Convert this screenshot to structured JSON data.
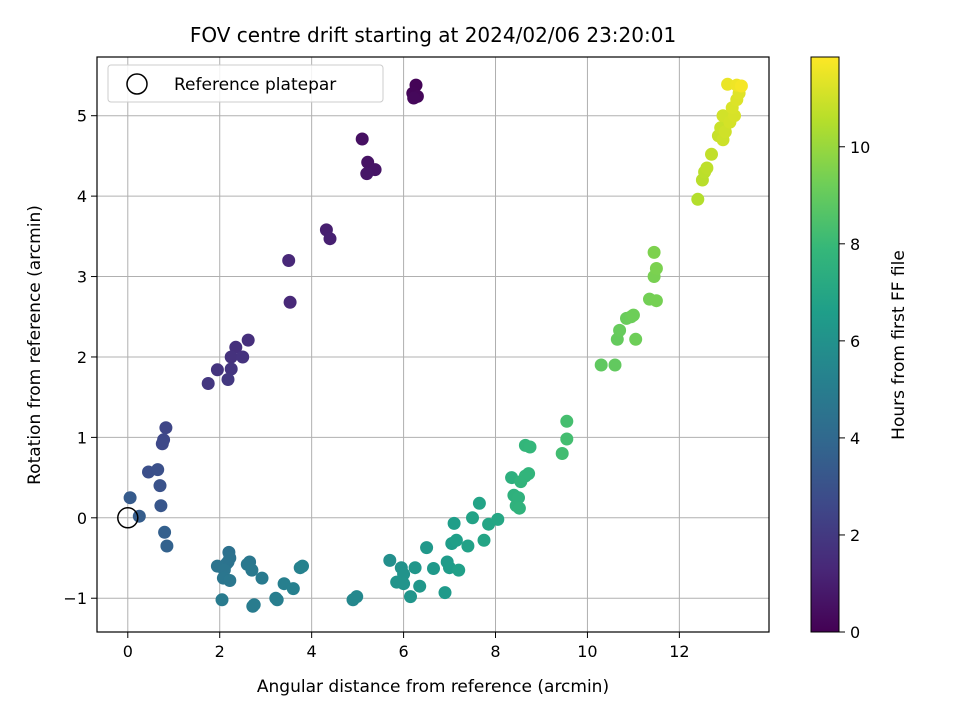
{
  "chart_data": {
    "type": "scatter",
    "title": "FOV centre drift starting at 2024/02/06 23:20:01",
    "xlabel": "Angular distance from reference (arcmin)",
    "ylabel": "Rotation from reference (arcmin)",
    "xlim": [
      -0.67,
      13.95
    ],
    "ylim": [
      -1.42,
      5.73
    ],
    "xticks": [
      0,
      2,
      4,
      6,
      8,
      10,
      12
    ],
    "yticks": [
      -1,
      0,
      1,
      2,
      3,
      4,
      5
    ],
    "grid": true,
    "legend": {
      "position": "top-left",
      "entries": [
        "Reference platepar"
      ]
    },
    "reference_point": {
      "x": 0,
      "y": 0
    },
    "colorbar": {
      "label": "Hours from first FF file",
      "colormap": "viridis",
      "range": [
        0,
        11.85
      ],
      "ticks": [
        0,
        2,
        4,
        6,
        8,
        10
      ]
    },
    "colormap_stops": [
      "#440154",
      "#482878",
      "#3e4989",
      "#31688e",
      "#26828e",
      "#1f9e89",
      "#35b779",
      "#6ece58",
      "#b5de2b",
      "#fde725"
    ],
    "points": [
      [
        6.27,
        5.38,
        0.1
      ],
      [
        6.2,
        5.28,
        0.15
      ],
      [
        6.3,
        5.24,
        0.2
      ],
      [
        6.22,
        5.22,
        0.25
      ],
      [
        5.1,
        4.71,
        0.5
      ],
      [
        5.22,
        4.42,
        0.6
      ],
      [
        5.38,
        4.33,
        0.65
      ],
      [
        5.2,
        4.28,
        0.7
      ],
      [
        4.32,
        3.58,
        1.0
      ],
      [
        4.4,
        3.47,
        1.05
      ],
      [
        3.5,
        3.2,
        1.3
      ],
      [
        3.53,
        2.68,
        1.35
      ],
      [
        2.62,
        2.21,
        1.6
      ],
      [
        2.35,
        2.12,
        1.65
      ],
      [
        2.25,
        2.0,
        1.7
      ],
      [
        2.5,
        2.0,
        1.75
      ],
      [
        1.95,
        1.84,
        1.8
      ],
      [
        2.25,
        1.85,
        1.85
      ],
      [
        1.75,
        1.67,
        1.9
      ],
      [
        2.18,
        1.72,
        1.95
      ],
      [
        0.83,
        1.12,
        2.5
      ],
      [
        0.78,
        0.97,
        2.6
      ],
      [
        0.75,
        0.92,
        2.65
      ],
      [
        0.45,
        0.57,
        2.9
      ],
      [
        0.65,
        0.6,
        2.95
      ],
      [
        0.7,
        0.4,
        3.0
      ],
      [
        0.05,
        0.25,
        3.4
      ],
      [
        0.25,
        0.02,
        3.5
      ],
      [
        0.72,
        0.15,
        3.2
      ],
      [
        0.8,
        -0.18,
        3.6
      ],
      [
        0.85,
        -0.35,
        3.7
      ],
      [
        2.2,
        -0.43,
        4.4
      ],
      [
        2.22,
        -0.5,
        4.45
      ],
      [
        2.18,
        -0.55,
        4.5
      ],
      [
        2.15,
        -0.57,
        4.5
      ],
      [
        1.95,
        -0.6,
        4.55
      ],
      [
        2.1,
        -0.65,
        4.6
      ],
      [
        2.08,
        -0.75,
        4.65
      ],
      [
        2.22,
        -0.78,
        4.7
      ],
      [
        2.65,
        -0.55,
        4.7
      ],
      [
        2.6,
        -0.58,
        4.75
      ],
      [
        2.7,
        -0.65,
        4.8
      ],
      [
        2.92,
        -0.75,
        4.85
      ],
      [
        2.05,
        -1.02,
        4.9
      ],
      [
        2.72,
        -1.1,
        4.95
      ],
      [
        2.75,
        -1.08,
        4.95
      ],
      [
        3.22,
        -1.0,
        5.0
      ],
      [
        3.25,
        -1.02,
        5.05
      ],
      [
        3.4,
        -0.82,
        5.1
      ],
      [
        3.6,
        -0.88,
        5.15
      ],
      [
        3.75,
        -0.62,
        5.2
      ],
      [
        3.8,
        -0.6,
        5.25
      ],
      [
        4.9,
        -1.02,
        5.5
      ],
      [
        4.98,
        -0.98,
        5.55
      ],
      [
        5.7,
        -0.53,
        5.9
      ],
      [
        5.95,
        -0.62,
        6.0
      ],
      [
        6.0,
        -0.7,
        6.05
      ],
      [
        5.85,
        -0.8,
        6.1
      ],
      [
        6.0,
        -0.82,
        6.1
      ],
      [
        6.15,
        -0.98,
        6.15
      ],
      [
        6.25,
        -0.62,
        6.2
      ],
      [
        6.35,
        -0.85,
        6.25
      ],
      [
        6.5,
        -0.37,
        6.3
      ],
      [
        6.65,
        -0.63,
        6.35
      ],
      [
        6.9,
        -0.93,
        6.4
      ],
      [
        6.95,
        -0.55,
        6.45
      ],
      [
        7.0,
        -0.62,
        6.5
      ],
      [
        7.05,
        -0.32,
        6.55
      ],
      [
        7.1,
        -0.07,
        6.6
      ],
      [
        7.15,
        -0.28,
        6.65
      ],
      [
        7.2,
        -0.65,
        6.7
      ],
      [
        7.4,
        -0.35,
        6.75
      ],
      [
        7.5,
        0.0,
        6.8
      ],
      [
        7.65,
        0.18,
        6.85
      ],
      [
        7.75,
        -0.28,
        6.9
      ],
      [
        7.85,
        -0.08,
        6.95
      ],
      [
        8.05,
        -0.02,
        7.0
      ],
      [
        8.35,
        0.5,
        7.5
      ],
      [
        8.4,
        0.28,
        7.55
      ],
      [
        8.45,
        0.15,
        7.6
      ],
      [
        8.5,
        0.25,
        7.6
      ],
      [
        8.52,
        0.12,
        7.65
      ],
      [
        8.55,
        0.45,
        7.7
      ],
      [
        8.65,
        0.52,
        7.75
      ],
      [
        8.72,
        0.55,
        7.75
      ],
      [
        8.65,
        0.9,
        7.8
      ],
      [
        8.75,
        0.88,
        7.85
      ],
      [
        9.45,
        0.8,
        8.2
      ],
      [
        9.55,
        0.98,
        8.25
      ],
      [
        9.55,
        1.2,
        8.3
      ],
      [
        10.3,
        1.9,
        8.9
      ],
      [
        10.6,
        1.9,
        8.95
      ],
      [
        10.65,
        2.22,
        9.0
      ],
      [
        10.7,
        2.33,
        9.05
      ],
      [
        10.85,
        2.48,
        9.1
      ],
      [
        10.95,
        2.5,
        9.15
      ],
      [
        11.0,
        2.52,
        9.2
      ],
      [
        11.05,
        2.22,
        9.2
      ],
      [
        11.35,
        2.72,
        9.3
      ],
      [
        11.5,
        2.7,
        9.35
      ],
      [
        11.45,
        3.0,
        9.4
      ],
      [
        11.5,
        3.1,
        9.45
      ],
      [
        11.45,
        3.3,
        9.5
      ],
      [
        12.4,
        3.96,
        10.5
      ],
      [
        12.5,
        4.2,
        10.6
      ],
      [
        12.55,
        4.3,
        10.65
      ],
      [
        12.6,
        4.35,
        10.7
      ],
      [
        12.7,
        4.52,
        10.75
      ],
      [
        12.85,
        4.75,
        10.85
      ],
      [
        12.9,
        4.85,
        10.9
      ],
      [
        12.95,
        4.7,
        10.95
      ],
      [
        13.0,
        4.8,
        11.0
      ],
      [
        12.95,
        5.0,
        11.05
      ],
      [
        13.1,
        4.92,
        11.1
      ],
      [
        13.2,
        5.0,
        11.15
      ],
      [
        13.15,
        5.1,
        11.2
      ],
      [
        13.25,
        5.2,
        11.25
      ],
      [
        13.3,
        5.28,
        11.3
      ],
      [
        13.05,
        5.39,
        11.5
      ],
      [
        13.25,
        5.38,
        11.6
      ],
      [
        13.35,
        5.37,
        11.7
      ]
    ]
  }
}
